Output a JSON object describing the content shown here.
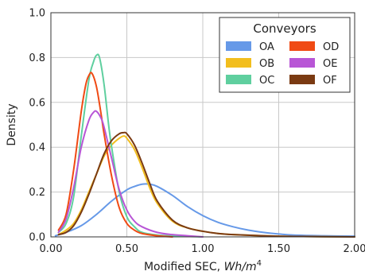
{
  "chart_data": {
    "type": "line",
    "title": "",
    "xlabel": {
      "main": "Modified SEC, ",
      "unit_base": "Wh/m",
      "unit_exp": "4"
    },
    "ylabel": "Density",
    "xlim": [
      0.0,
      2.0
    ],
    "ylim": [
      0.0,
      1.0
    ],
    "x_ticks": [
      "0.00",
      "0.50",
      "1.00",
      "1.50",
      "2.00"
    ],
    "y_ticks": [
      "0.0",
      "0.2",
      "0.4",
      "0.6",
      "0.8",
      "1.0"
    ],
    "grid": true,
    "legend": {
      "title": "Conveyors",
      "placement": "top-right",
      "columns": 2
    },
    "series": [
      {
        "name": "OA",
        "color": "#6699e8",
        "x": [
          0.03,
          0.1,
          0.2,
          0.3,
          0.4,
          0.5,
          0.55,
          0.6,
          0.65,
          0.7,
          0.8,
          0.9,
          1.0,
          1.1,
          1.2,
          1.3,
          1.4,
          1.5,
          1.6,
          1.8,
          2.0
        ],
        "y": [
          0.005,
          0.02,
          0.05,
          0.1,
          0.16,
          0.21,
          0.225,
          0.235,
          0.235,
          0.225,
          0.185,
          0.135,
          0.095,
          0.065,
          0.045,
          0.03,
          0.02,
          0.013,
          0.008,
          0.005,
          0.003
        ]
      },
      {
        "name": "OB",
        "color": "#f2be1e",
        "x": [
          0.05,
          0.1,
          0.15,
          0.2,
          0.25,
          0.3,
          0.35,
          0.4,
          0.45,
          0.48,
          0.5,
          0.55,
          0.6,
          0.65,
          0.7,
          0.8,
          0.9,
          1.0,
          1.1,
          1.2,
          1.4,
          1.6,
          2.0
        ],
        "y": [
          0.01,
          0.03,
          0.06,
          0.12,
          0.2,
          0.28,
          0.36,
          0.41,
          0.44,
          0.45,
          0.44,
          0.39,
          0.31,
          0.22,
          0.15,
          0.07,
          0.04,
          0.025,
          0.015,
          0.01,
          0.005,
          0.002,
          0.0
        ]
      },
      {
        "name": "OC",
        "color": "#5fcf9f",
        "x": [
          0.05,
          0.1,
          0.15,
          0.2,
          0.25,
          0.28,
          0.3,
          0.32,
          0.35,
          0.38,
          0.4,
          0.45,
          0.5,
          0.55,
          0.6,
          0.7,
          0.8,
          1.0
        ],
        "y": [
          0.02,
          0.06,
          0.18,
          0.45,
          0.7,
          0.78,
          0.81,
          0.8,
          0.68,
          0.5,
          0.4,
          0.2,
          0.09,
          0.045,
          0.02,
          0.008,
          0.004,
          0.0
        ]
      },
      {
        "name": "OD",
        "color": "#f04a14",
        "x": [
          0.05,
          0.1,
          0.15,
          0.2,
          0.23,
          0.25,
          0.27,
          0.3,
          0.33,
          0.35,
          0.4,
          0.45,
          0.5,
          0.55,
          0.6,
          0.7,
          0.8
        ],
        "y": [
          0.03,
          0.1,
          0.3,
          0.56,
          0.68,
          0.72,
          0.73,
          0.67,
          0.55,
          0.46,
          0.27,
          0.13,
          0.06,
          0.03,
          0.015,
          0.005,
          0.0
        ]
      },
      {
        "name": "OE",
        "color": "#b856d6",
        "x": [
          0.05,
          0.1,
          0.15,
          0.2,
          0.25,
          0.28,
          0.3,
          0.33,
          0.35,
          0.4,
          0.45,
          0.5,
          0.55,
          0.6,
          0.7,
          0.8,
          0.9,
          1.0
        ],
        "y": [
          0.02,
          0.08,
          0.22,
          0.4,
          0.52,
          0.555,
          0.56,
          0.53,
          0.49,
          0.35,
          0.21,
          0.12,
          0.07,
          0.045,
          0.02,
          0.01,
          0.005,
          0.0
        ]
      },
      {
        "name": "OF",
        "color": "#7a3a12",
        "x": [
          0.05,
          0.1,
          0.15,
          0.2,
          0.25,
          0.3,
          0.35,
          0.4,
          0.45,
          0.48,
          0.5,
          0.55,
          0.6,
          0.65,
          0.7,
          0.8,
          0.9,
          1.0,
          1.1,
          1.2,
          1.4,
          1.6,
          2.0
        ],
        "y": [
          0.01,
          0.02,
          0.05,
          0.11,
          0.19,
          0.28,
          0.37,
          0.43,
          0.46,
          0.465,
          0.46,
          0.41,
          0.33,
          0.24,
          0.16,
          0.075,
          0.04,
          0.025,
          0.015,
          0.01,
          0.005,
          0.002,
          0.0
        ]
      }
    ]
  }
}
